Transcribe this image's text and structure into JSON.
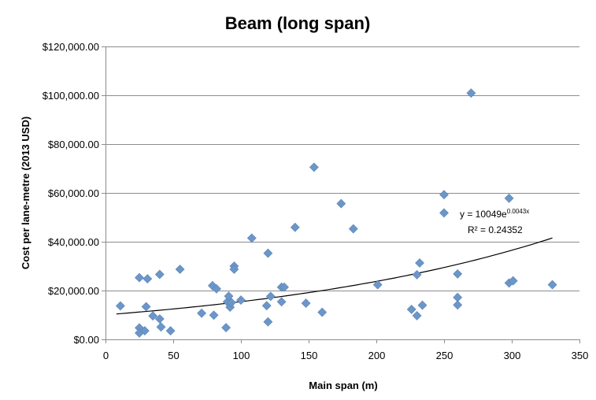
{
  "chart_data": {
    "type": "scatter",
    "title": "Beam (long span)",
    "xlabel": "Main span (m)",
    "ylabel": "Cost per lane-metre (2013 USD)",
    "xlim": [
      0,
      350
    ],
    "ylim": [
      0,
      120000
    ],
    "x_ticks": [
      0,
      50,
      100,
      150,
      200,
      250,
      300,
      350
    ],
    "x_tick_labels": [
      "0",
      "50",
      "100",
      "150",
      "200",
      "250",
      "300",
      "350"
    ],
    "y_ticks": [
      0,
      20000,
      40000,
      60000,
      80000,
      100000,
      120000
    ],
    "y_tick_labels": [
      "$0.00",
      "$20,000.00",
      "$40,000.00",
      "$60,000.00",
      "$80,000.00",
      "$100,000.00",
      "$120,000.00"
    ],
    "grid": {
      "horizontal": true,
      "vertical": false
    },
    "colors": {
      "marker": "#6c96c8",
      "trendline": "#000000",
      "grid": "#8c8c8c"
    },
    "series": [
      {
        "marker": "diamond",
        "points": [
          [
            11,
            13700
          ],
          [
            25,
            25300
          ],
          [
            25,
            4700
          ],
          [
            25,
            2600
          ],
          [
            29,
            3500
          ],
          [
            30,
            13400
          ],
          [
            31,
            24800
          ],
          [
            35,
            9600
          ],
          [
            40,
            26600
          ],
          [
            40,
            8400
          ],
          [
            41,
            5100
          ],
          [
            48,
            3500
          ],
          [
            55,
            28700
          ],
          [
            71,
            10700
          ],
          [
            79,
            22000
          ],
          [
            80,
            9900
          ],
          [
            82,
            20700
          ],
          [
            89,
            4800
          ],
          [
            90,
            15400
          ],
          [
            91,
            17700
          ],
          [
            92,
            13200
          ],
          [
            93,
            15100
          ],
          [
            95,
            30000
          ],
          [
            95,
            28700
          ],
          [
            100,
            16100
          ],
          [
            108,
            41500
          ],
          [
            119,
            13800
          ],
          [
            120,
            7200
          ],
          [
            120,
            35300
          ],
          [
            122,
            17600
          ],
          [
            130,
            15400
          ],
          [
            130,
            21400
          ],
          [
            132,
            21400
          ],
          [
            140,
            45900
          ],
          [
            148,
            14800
          ],
          [
            154,
            70500
          ],
          [
            160,
            11100
          ],
          [
            174,
            55600
          ],
          [
            183,
            45300
          ],
          [
            201,
            22400
          ],
          [
            226,
            12300
          ],
          [
            230,
            9700
          ],
          [
            230,
            26500
          ],
          [
            232,
            31300
          ],
          [
            234,
            14000
          ],
          [
            250,
            59300
          ],
          [
            250,
            51800
          ],
          [
            260,
            26800
          ],
          [
            260,
            17200
          ],
          [
            260,
            14100
          ],
          [
            270,
            100900
          ],
          [
            298,
            57800
          ],
          [
            298,
            23100
          ],
          [
            301,
            24000
          ],
          [
            330,
            22400
          ]
        ]
      }
    ],
    "trendline": {
      "type": "exponential",
      "a": 10049,
      "b": 0.0043,
      "x_from": 8,
      "x_to": 330,
      "equation_prefix": "y = 10049e",
      "equation_exponent": "0.0043x",
      "r_squared_text": "R² = 0.24352"
    }
  }
}
